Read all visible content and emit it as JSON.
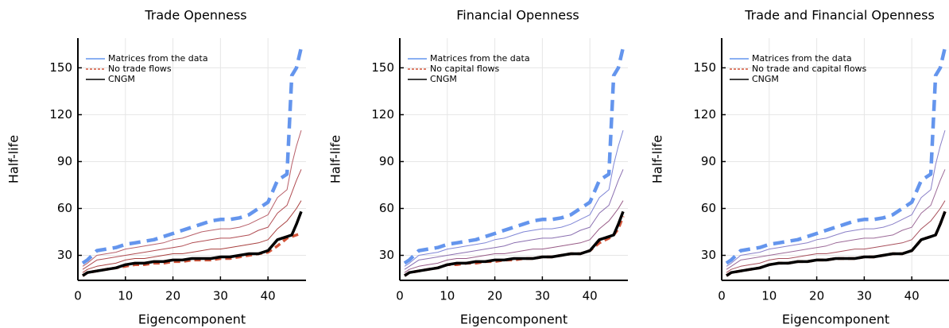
{
  "chart_data": [
    {
      "type": "line",
      "title": "Trade Openness",
      "xlabel": "Eigencomponent",
      "ylabel": "Half-life",
      "x": [
        1,
        2,
        4,
        6,
        8,
        10,
        12,
        14,
        16,
        18,
        20,
        22,
        24,
        26,
        28,
        30,
        32,
        34,
        36,
        38,
        40,
        42,
        44,
        45,
        46,
        47
      ],
      "xlim": [
        0,
        48
      ],
      "ylim": [
        14,
        169
      ],
      "xticks": [
        0,
        10,
        20,
        30,
        40
      ],
      "yticks": [
        30,
        60,
        90,
        120,
        150
      ],
      "grid": true,
      "legend": "top-left",
      "series": [
        {
          "color": "#b8606a",
          "linestyle": "solid",
          "values": [
            23,
            25,
            30,
            31,
            32,
            34,
            35,
            36,
            37,
            38,
            40,
            41,
            43,
            45,
            46,
            47,
            47,
            48,
            50,
            53,
            56,
            67,
            72,
            88,
            100,
            110
          ]
        },
        {
          "color": "#b04c52",
          "linestyle": "solid",
          "values": [
            21,
            23,
            27,
            28,
            29,
            30,
            31,
            32,
            33,
            34,
            35,
            36,
            38,
            39,
            40,
            41,
            41,
            42,
            43,
            46,
            48,
            57,
            62,
            70,
            78,
            85
          ]
        },
        {
          "color": "#a8403f",
          "linestyle": "solid",
          "values": [
            19,
            21,
            23,
            24,
            25,
            27,
            28,
            28,
            29,
            30,
            31,
            31,
            32,
            33,
            34,
            34,
            35,
            36,
            37,
            38,
            40,
            47,
            52,
            56,
            60,
            65
          ]
        },
        {
          "name": "Matrices from the data",
          "color": "#6495ed",
          "linestyle": "dashed",
          "values": [
            25,
            27,
            33,
            34,
            35,
            37,
            38,
            39,
            40,
            42,
            44,
            46,
            48,
            50,
            52,
            53,
            53,
            54,
            56,
            60,
            64,
            78,
            82,
            145,
            150,
            163
          ]
        },
        {
          "name": "No trade flows",
          "color": "#d2553a",
          "linestyle": "dashed",
          "values": [
            17,
            19,
            20,
            21,
            22,
            23,
            24,
            24,
            25,
            25,
            26,
            26,
            27,
            27,
            27,
            28,
            28,
            29,
            30,
            31,
            32,
            36,
            41,
            42,
            43,
            44
          ]
        },
        {
          "name": "CNGM",
          "color": "#000000",
          "linestyle": "solid",
          "values": [
            17,
            19,
            20,
            21,
            22,
            24,
            25,
            25,
            26,
            26,
            27,
            27,
            28,
            28,
            28,
            29,
            29,
            30,
            31,
            31,
            33,
            40,
            42,
            43,
            50,
            58
          ]
        }
      ]
    },
    {
      "type": "line",
      "title": "Financial Openness",
      "xlabel": "Eigencomponent",
      "ylabel": "Half-life",
      "x": [
        1,
        2,
        4,
        6,
        8,
        10,
        12,
        14,
        16,
        18,
        20,
        22,
        24,
        26,
        28,
        30,
        32,
        34,
        36,
        38,
        40,
        42,
        44,
        45,
        46,
        47
      ],
      "xlim": [
        0,
        48
      ],
      "ylim": [
        14,
        169
      ],
      "xticks": [
        0,
        10,
        20,
        30,
        40
      ],
      "yticks": [
        30,
        60,
        90,
        120,
        150
      ],
      "grid": true,
      "legend": "top-left",
      "series": [
        {
          "color": "#7f86d6",
          "linestyle": "solid",
          "values": [
            23,
            25,
            30,
            31,
            32,
            34,
            35,
            36,
            37,
            38,
            40,
            41,
            43,
            45,
            46,
            47,
            47,
            48,
            50,
            53,
            56,
            67,
            72,
            88,
            100,
            110
          ]
        },
        {
          "color": "#8a6fb0",
          "linestyle": "solid",
          "values": [
            21,
            23,
            27,
            28,
            29,
            30,
            31,
            32,
            33,
            34,
            35,
            36,
            38,
            39,
            40,
            41,
            41,
            42,
            43,
            46,
            48,
            57,
            62,
            70,
            78,
            85
          ]
        },
        {
          "color": "#975a86",
          "linestyle": "solid",
          "values": [
            19,
            21,
            23,
            24,
            25,
            27,
            28,
            28,
            29,
            30,
            31,
            31,
            32,
            33,
            34,
            34,
            35,
            36,
            37,
            38,
            40,
            47,
            52,
            56,
            60,
            65
          ]
        },
        {
          "name": "Matrices from the data",
          "color": "#6495ed",
          "linestyle": "dashed",
          "values": [
            25,
            27,
            33,
            34,
            35,
            37,
            38,
            39,
            40,
            42,
            44,
            46,
            48,
            50,
            52,
            53,
            53,
            54,
            56,
            60,
            64,
            78,
            82,
            145,
            150,
            163
          ]
        },
        {
          "name": "No capital flows",
          "color": "#d2553a",
          "linestyle": "dashed",
          "values": [
            17,
            19,
            20,
            21,
            22,
            24,
            24,
            25,
            25,
            26,
            26,
            27,
            27,
            28,
            28,
            29,
            29,
            30,
            31,
            31,
            33,
            38,
            41,
            43,
            47,
            55
          ]
        },
        {
          "name": "CNGM",
          "color": "#000000",
          "linestyle": "solid",
          "values": [
            17,
            19,
            20,
            21,
            22,
            24,
            25,
            25,
            26,
            26,
            27,
            27,
            28,
            28,
            28,
            29,
            29,
            30,
            31,
            31,
            33,
            40,
            42,
            43,
            50,
            58
          ]
        }
      ]
    },
    {
      "type": "line",
      "title": "Trade and Financial Openness",
      "xlabel": "Eigencomponent",
      "ylabel": "Half-life",
      "x": [
        1,
        2,
        4,
        6,
        8,
        10,
        12,
        14,
        16,
        18,
        20,
        22,
        24,
        26,
        28,
        30,
        32,
        34,
        36,
        38,
        40,
        42,
        44,
        45,
        46,
        47
      ],
      "xlim": [
        0,
        48
      ],
      "ylim": [
        14,
        169
      ],
      "xticks": [
        0,
        10,
        20,
        30,
        40
      ],
      "yticks": [
        30,
        60,
        90,
        120,
        150
      ],
      "grid": true,
      "legend": "top-left",
      "series": [
        {
          "color": "#8a80c8",
          "linestyle": "solid",
          "values": [
            23,
            25,
            30,
            31,
            32,
            34,
            35,
            36,
            37,
            38,
            40,
            41,
            43,
            45,
            46,
            47,
            47,
            48,
            50,
            53,
            56,
            67,
            72,
            88,
            100,
            110
          ]
        },
        {
          "color": "#9c6a98",
          "linestyle": "solid",
          "values": [
            21,
            23,
            27,
            28,
            29,
            30,
            31,
            32,
            33,
            34,
            35,
            36,
            38,
            39,
            40,
            41,
            41,
            42,
            43,
            46,
            48,
            57,
            62,
            70,
            78,
            85
          ]
        },
        {
          "color": "#a8505c",
          "linestyle": "solid",
          "values": [
            19,
            21,
            23,
            24,
            25,
            27,
            28,
            28,
            29,
            30,
            31,
            31,
            32,
            33,
            34,
            34,
            35,
            36,
            37,
            38,
            40,
            47,
            52,
            56,
            60,
            65
          ]
        },
        {
          "name": "Matrices from the data",
          "color": "#6495ed",
          "linestyle": "dashed",
          "values": [
            25,
            27,
            33,
            34,
            35,
            37,
            38,
            39,
            40,
            42,
            44,
            46,
            48,
            50,
            52,
            53,
            53,
            54,
            56,
            60,
            64,
            78,
            82,
            145,
            150,
            163
          ]
        },
        {
          "name": "No trade and capital flows",
          "color": "#d2553a",
          "linestyle": "dashed",
          "values": [
            17,
            19,
            20,
            21,
            22,
            24,
            25,
            25,
            26,
            26,
            27,
            27,
            28,
            28,
            28,
            29,
            29,
            30,
            31,
            31,
            33,
            40,
            42,
            43,
            50,
            58
          ]
        },
        {
          "name": "CNGM",
          "color": "#000000",
          "linestyle": "solid",
          "values": [
            17,
            19,
            20,
            21,
            22,
            24,
            25,
            25,
            26,
            26,
            27,
            27,
            28,
            28,
            28,
            29,
            29,
            30,
            31,
            31,
            33,
            40,
            42,
            43,
            50,
            58
          ]
        }
      ]
    }
  ]
}
